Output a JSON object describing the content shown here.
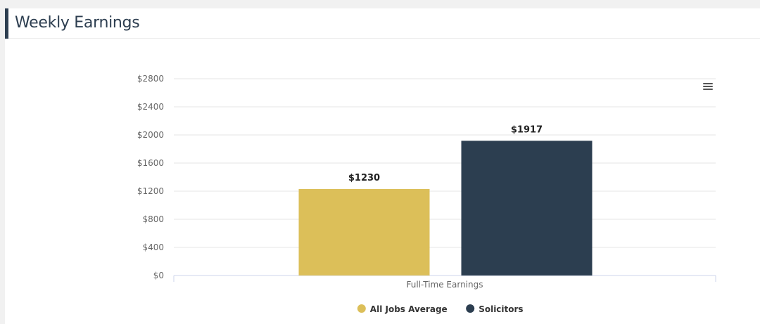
{
  "header": {
    "title": "Weekly Earnings"
  },
  "chart_data": {
    "type": "bar",
    "title": "",
    "categories": [
      "Full-Time Earnings"
    ],
    "series": [
      {
        "name": "All Jobs Average",
        "values": [
          1230
        ],
        "color": "#dcbf59",
        "data_label": "$1230"
      },
      {
        "name": "Solicitors",
        "values": [
          1917
        ],
        "color": "#2c3e50",
        "data_label": "$1917"
      }
    ],
    "xlabel": "",
    "ylabel": "",
    "ylim": [
      0,
      2800
    ],
    "yticks": [
      0,
      400,
      800,
      1200,
      1600,
      2000,
      2400,
      2800
    ],
    "ytick_labels": [
      "$0",
      "$400",
      "$800",
      "$1200",
      "$1600",
      "$2000",
      "$2400",
      "$2800"
    ],
    "grid": true,
    "legend": "bottom-center"
  },
  "colors": {
    "accent": "#2d3e50",
    "gold": "#dcbf59",
    "navy": "#2c3e50"
  },
  "icons": {
    "menu": "hamburger-menu-icon"
  }
}
